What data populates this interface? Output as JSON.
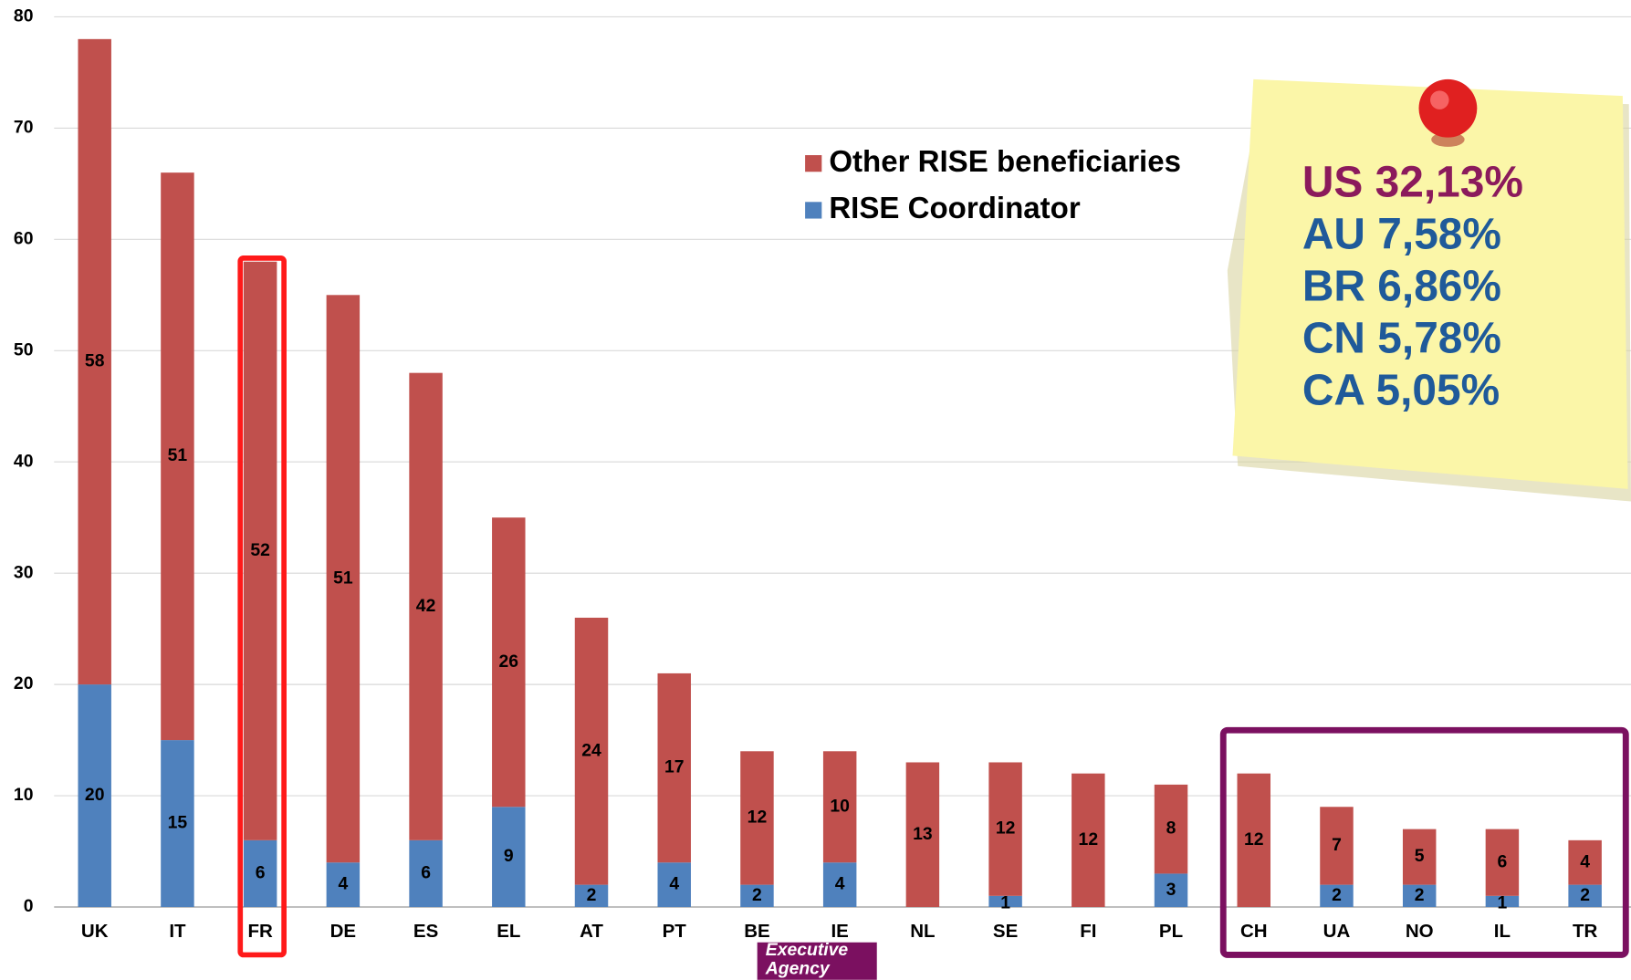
{
  "chart_data": {
    "type": "stacked-bar",
    "categories": [
      "UK",
      "IT",
      "FR",
      "DE",
      "ES",
      "EL",
      "AT",
      "PT",
      "BE",
      "IE",
      "NL",
      "SE",
      "FI",
      "PL",
      "CH",
      "UA",
      "NO",
      "IL",
      "TR"
    ],
    "series": [
      {
        "name": "RISE Coordinator",
        "color": "#4f81bd",
        "values": [
          20,
          15,
          6,
          4,
          6,
          9,
          2,
          4,
          2,
          4,
          null,
          1,
          null,
          3,
          null,
          2,
          2,
          1,
          2
        ]
      },
      {
        "name": "Other RISE beneficiaries",
        "color": "#c0504d",
        "values": [
          58,
          51,
          52,
          51,
          42,
          26,
          24,
          17,
          12,
          10,
          13,
          12,
          12,
          8,
          12,
          7,
          5,
          6,
          4
        ]
      }
    ],
    "ylim": [
      0,
      80
    ],
    "yticks": [
      0,
      10,
      20,
      30,
      40,
      50,
      60,
      70,
      80
    ],
    "grid": true,
    "annotations": [
      "US 32,13%",
      "AU 7,58%",
      "BR 6,86%",
      "CN 5,78%",
      "CA 5,05%"
    ],
    "logo_text": [
      "Executive",
      "Agency"
    ]
  }
}
